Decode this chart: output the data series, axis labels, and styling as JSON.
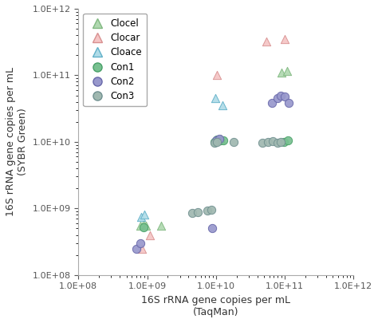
{
  "xlabel": "16S rRNA gene copies per mL\n(TaqMan)",
  "ylabel": "16S rRNA gene copies per mL\n(SYBR Green)",
  "series": {
    "Clocel": {
      "marker": "^",
      "color": "#b0d8b0",
      "edgecolor": "#80b880",
      "x": [
        800000000.0,
        880000000.0,
        950000000.0,
        1600000000.0,
        10500000000.0,
        12000000000.0,
        90000000000.0,
        110000000000.0
      ],
      "y": [
        550000000.0,
        580000000.0,
        550000000.0,
        550000000.0,
        10500000000.0,
        11000000000.0,
        110000000000.0,
        115000000000.0
      ]
    },
    "Clocar": {
      "marker": "^",
      "color": "#f5c5c5",
      "edgecolor": "#d89090",
      "x": [
        850000000.0,
        1100000000.0,
        10500000000.0,
        55000000000.0,
        100000000000.0
      ],
      "y": [
        250000000.0,
        400000000.0,
        100000000000.0,
        320000000000.0,
        350000000000.0
      ]
    },
    "Cloace": {
      "marker": "^",
      "color": "#b0dce8",
      "edgecolor": "#60b0c8",
      "x": [
        820000000.0,
        900000000.0,
        9800000000.0,
        12500000000.0
      ],
      "y": [
        750000000.0,
        800000000.0,
        45000000000.0,
        35000000000.0
      ]
    },
    "Con1": {
      "marker": "o",
      "color": "#78c090",
      "edgecolor": "#48a068",
      "x": [
        880000000.0,
        9500000000.0,
        10500000000.0,
        11500000000.0,
        13000000000.0,
        98000000000.0,
        112000000000.0
      ],
      "y": [
        520000000.0,
        10000000000.0,
        10800000000.0,
        10500000000.0,
        10500000000.0,
        10000000000.0,
        10500000000.0
      ]
    },
    "Con2": {
      "marker": "o",
      "color": "#9898cc",
      "edgecolor": "#6868aa",
      "x": [
        700000000.0,
        800000000.0,
        8800000000.0,
        10200000000.0,
        11200000000.0,
        65000000000.0,
        78000000000.0,
        88000000000.0,
        100000000000.0,
        115000000000.0
      ],
      "y": [
        250000000.0,
        300000000.0,
        500000000.0,
        10500000000.0,
        11000000000.0,
        38000000000.0,
        45000000000.0,
        50000000000.0,
        48000000000.0,
        38000000000.0
      ]
    },
    "Con3": {
      "marker": "o",
      "color": "#a0b8b0",
      "edgecolor": "#709090",
      "x": [
        4500000000.0,
        5500000000.0,
        7500000000.0,
        8500000000.0,
        9500000000.0,
        10500000000.0,
        18000000000.0,
        48000000000.0,
        58000000000.0,
        68000000000.0,
        78000000000.0,
        88000000000.0
      ],
      "y": [
        850000000.0,
        880000000.0,
        920000000.0,
        950000000.0,
        9800000000.0,
        10000000000.0,
        10000000000.0,
        9800000000.0,
        10000000000.0,
        10200000000.0,
        9800000000.0,
        10000000000.0
      ]
    }
  }
}
